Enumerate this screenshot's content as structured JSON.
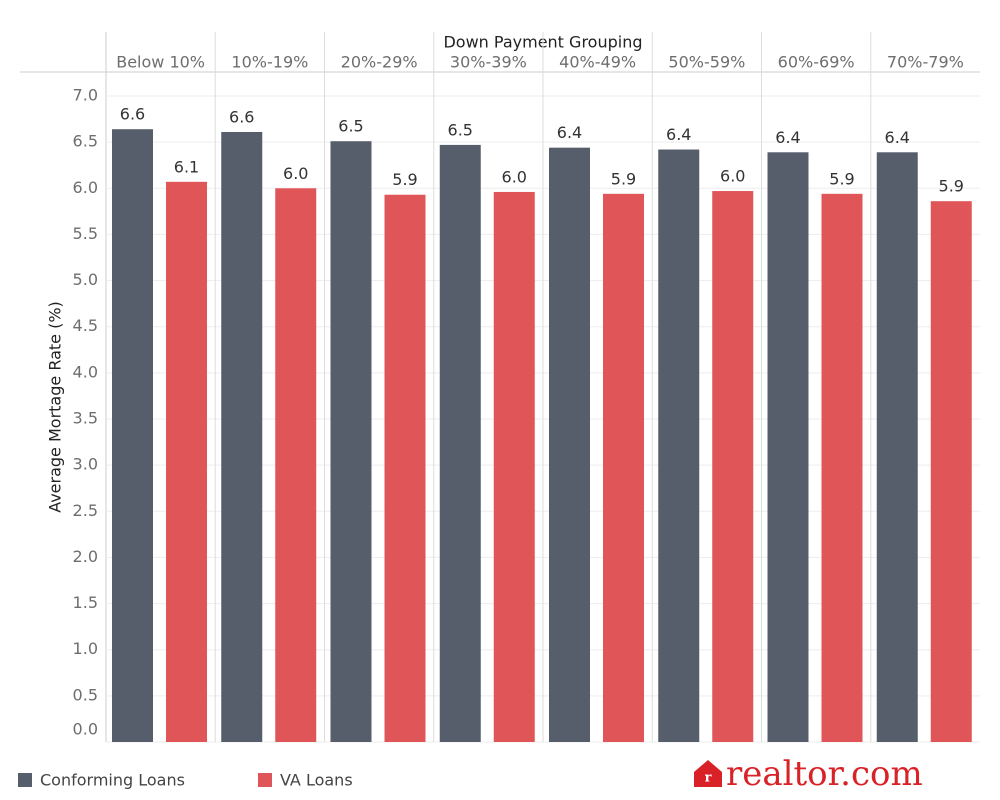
{
  "chart_data": {
    "type": "bar",
    "header": "Down Payment Grouping",
    "y_label": "Average Mortage Rate (%)",
    "categories": [
      "Below 10%",
      "10%-19%",
      "20%-29%",
      "30%-39%",
      "40%-49%",
      "50%-59%",
      "60%-69%",
      "70%-79%"
    ],
    "series": [
      {
        "name": "Conforming Loans",
        "color": "#575e6b",
        "values": [
          6.64,
          6.61,
          6.51,
          6.47,
          6.44,
          6.42,
          6.39,
          6.39
        ],
        "value_labels": [
          "6.6",
          "6.6",
          "6.5",
          "6.5",
          "6.4",
          "6.4",
          "6.4",
          "6.4"
        ]
      },
      {
        "name": "VA Loans",
        "color": "#e05558",
        "values": [
          6.07,
          6.0,
          5.93,
          5.96,
          5.94,
          5.97,
          5.94,
          5.86
        ],
        "value_labels": [
          "6.1",
          "6.0",
          "5.9",
          "6.0",
          "5.9",
          "6.0",
          "5.9",
          "5.9"
        ]
      }
    ],
    "ylim": [
      0,
      7.26
    ],
    "yticks": [
      {
        "value": 0,
        "label": "0.0"
      },
      0.5,
      {
        "value": 1,
        "label": "1.0"
      },
      1.5,
      {
        "value": 2,
        "label": "2.0"
      },
      2.5,
      {
        "value": 3,
        "label": "3.0"
      },
      3.5,
      {
        "value": 4,
        "label": "4.0"
      },
      4.5,
      {
        "value": 5,
        "label": "5.0"
      },
      5.5,
      {
        "value": 6,
        "label": "6.0"
      },
      6.5,
      {
        "value": 7,
        "label": "7.0"
      }
    ],
    "grid": true,
    "logo": "realtor.com"
  }
}
